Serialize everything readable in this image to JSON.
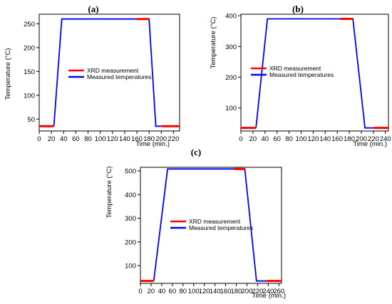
{
  "chart_data": [
    {
      "panel_label": "(a)",
      "type": "line",
      "xlabel": "Time (min.)",
      "ylabel": "Temperature (°C)",
      "xlim": [
        0,
        230
      ],
      "ylim": [
        25,
        270
      ],
      "xticks": [
        0,
        20,
        40,
        60,
        80,
        100,
        120,
        140,
        160,
        180,
        200,
        220
      ],
      "yticks": [
        50,
        100,
        150,
        200,
        250
      ],
      "legend": {
        "position": "center"
      },
      "colors": {
        "xrd": "#ff0000",
        "measured": "#0000ff",
        "border": "#000000"
      },
      "series": [
        {
          "name": "XRD measurement",
          "color": "#ff0000",
          "segments": [
            [
              [
                0,
                35
              ],
              [
                24,
                35
              ]
            ],
            [
              [
                160,
                260
              ],
              [
                180,
                260
              ]
            ],
            [
              [
                200,
                35
              ],
              [
                230,
                35
              ]
            ]
          ]
        },
        {
          "name": "Measured temperatures",
          "color": "#0000ff",
          "points": [
            [
              24,
              35
            ],
            [
              37,
              260
            ],
            [
              180,
              260
            ],
            [
              191,
              35
            ],
            [
              200,
              35
            ]
          ]
        }
      ]
    },
    {
      "panel_label": "(b)",
      "type": "line",
      "xlabel": "Time (min.)",
      "ylabel": "Temperature (°C)",
      "xlim": [
        0,
        245
      ],
      "ylim": [
        25,
        405
      ],
      "xticks": [
        0,
        20,
        40,
        60,
        80,
        100,
        120,
        140,
        160,
        180,
        200,
        220,
        240
      ],
      "yticks": [
        100,
        200,
        300,
        400
      ],
      "legend": {
        "position": "center-left"
      },
      "colors": {
        "xrd": "#ff0000",
        "measured": "#0000ff",
        "border": "#000000"
      },
      "series": [
        {
          "name": "XRD measurement",
          "color": "#ff0000",
          "segments": [
            [
              [
                0,
                35
              ],
              [
                25,
                35
              ]
            ],
            [
              [
                165,
                390
              ],
              [
                186,
                390
              ]
            ],
            [
              [
                220,
                35
              ],
              [
                245,
                35
              ]
            ]
          ]
        },
        {
          "name": "Measured temperatures",
          "color": "#0000ff",
          "points": [
            [
              25,
              35
            ],
            [
              44,
              390
            ],
            [
              186,
              390
            ],
            [
              206,
              35
            ],
            [
              220,
              35
            ]
          ]
        }
      ]
    },
    {
      "panel_label": "(c)",
      "type": "line",
      "xlabel": "Time (min.)",
      "ylabel": "Temperature (°C)",
      "xlim": [
        0,
        265
      ],
      "ylim": [
        25,
        515
      ],
      "xticks": [
        0,
        20,
        40,
        60,
        80,
        100,
        120,
        140,
        160,
        180,
        200,
        220,
        240,
        260
      ],
      "yticks": [
        100,
        200,
        300,
        400,
        500
      ],
      "legend": {
        "position": "center"
      },
      "colors": {
        "xrd": "#ff0000",
        "measured": "#0000ff",
        "border": "#000000"
      },
      "series": [
        {
          "name": "XRD measurement",
          "color": "#ff0000",
          "segments": [
            [
              [
                0,
                35
              ],
              [
                25,
                35
              ]
            ],
            [
              [
                176,
                508
              ],
              [
                196,
                508
              ]
            ],
            [
              [
                237,
                35
              ],
              [
                265,
                35
              ]
            ]
          ]
        },
        {
          "name": "Measured temperatures",
          "color": "#0000ff",
          "points": [
            [
              25,
              35
            ],
            [
              51,
              508
            ],
            [
              196,
              508
            ],
            [
              218,
              35
            ],
            [
              237,
              35
            ]
          ]
        }
      ]
    }
  ]
}
